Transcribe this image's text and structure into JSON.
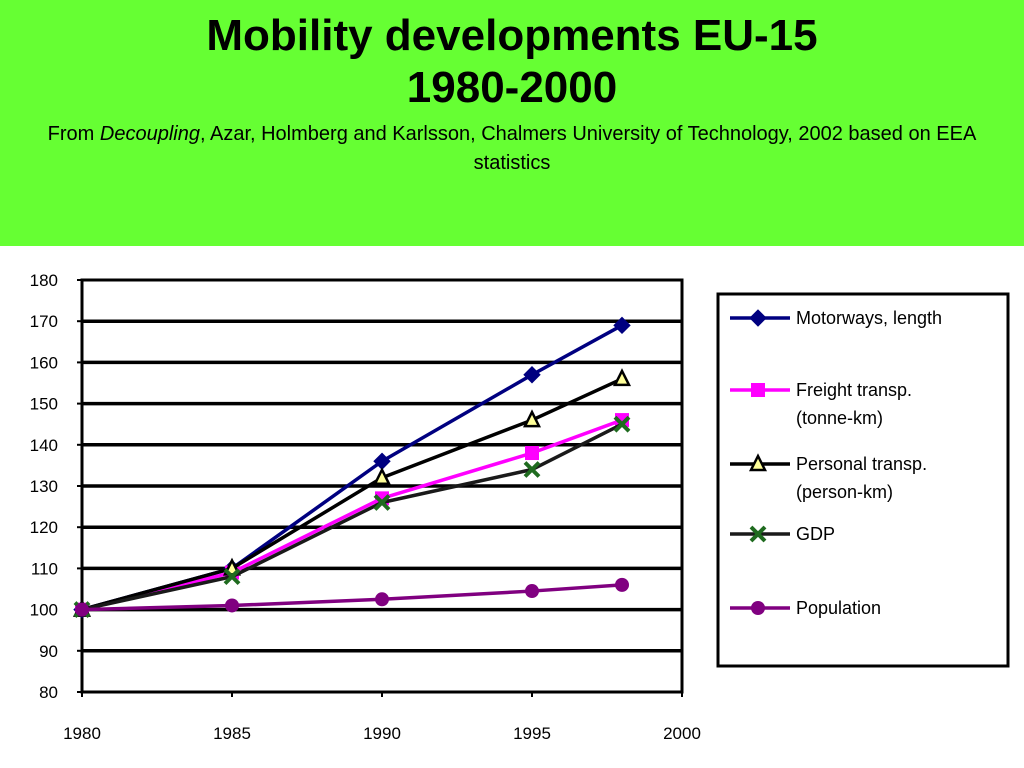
{
  "header": {
    "title_line1": "Mobility developments EU-15",
    "title_line2": "1980-2000",
    "subtitle_prefix": "From ",
    "subtitle_italic": "Decoupling",
    "subtitle_rest": ", Azar, Holmberg and Karlsson, Chalmers University of Technology, 2002 based on EEA statistics"
  },
  "colors": {
    "header_background": "#66ff33"
  },
  "chart_data": {
    "type": "line",
    "title": "",
    "xlabel": "",
    "ylabel": "",
    "xlim": [
      1980,
      2000
    ],
    "ylim": [
      80,
      180
    ],
    "x_ticks": [
      1980,
      1985,
      1990,
      1995,
      2000
    ],
    "y_ticks": [
      80,
      90,
      100,
      110,
      120,
      130,
      140,
      150,
      160,
      170,
      180
    ],
    "grid": "horizontal",
    "legend_position": "right",
    "series": [
      {
        "name": "Motorways, length",
        "color": "#000080",
        "marker": "diamond",
        "x": [
          1980,
          1985,
          1990,
          1995,
          1998
        ],
        "values": [
          100,
          110,
          136,
          157,
          169
        ]
      },
      {
        "name": "Freight transp. (tonne-km)",
        "name_lines": [
          "Freight transp.",
          "(tonne-km)"
        ],
        "color": "#ff00ff",
        "marker": "square",
        "x": [
          1980,
          1985,
          1990,
          1995,
          1998
        ],
        "values": [
          100,
          109,
          127,
          138,
          146
        ]
      },
      {
        "name": "Personal transp. (person-km)",
        "name_lines": [
          "Personal transp.",
          "(person-km)"
        ],
        "color": "#000000",
        "marker": "triangle",
        "x": [
          1980,
          1985,
          1990,
          1995,
          1998
        ],
        "values": [
          100,
          110,
          132,
          146,
          156
        ]
      },
      {
        "name": "GDP",
        "color": "#1a1a1a",
        "marker": "x",
        "x": [
          1980,
          1985,
          1990,
          1995,
          1998
        ],
        "values": [
          100,
          108,
          126,
          134,
          145
        ]
      },
      {
        "name": "Population",
        "color": "#800080",
        "marker": "circle",
        "x": [
          1980,
          1985,
          1990,
          1995,
          1998
        ],
        "values": [
          100,
          101,
          102.5,
          104.5,
          106
        ]
      }
    ]
  }
}
